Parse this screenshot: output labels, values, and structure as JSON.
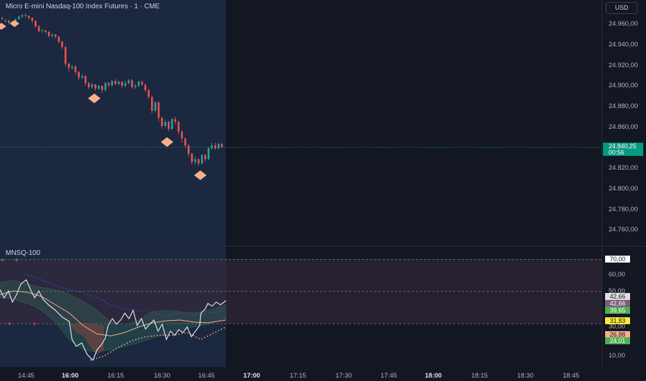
{
  "header": {
    "title": "Micro E-mini Nasdaq-100 Index Futures · 1 · CME",
    "currency": "USD"
  },
  "price_axis": [
    "24.960,00",
    "24.940,00",
    "24.920,00",
    "24.900,00",
    "24.880,00",
    "24.860,00",
    "24.820,00",
    "24.800,00",
    "24.780,00",
    "24.760,00"
  ],
  "last_price": {
    "price": "24.840,25",
    "countdown": "00:56"
  },
  "indicator": {
    "name": "MNSQ-100",
    "axis": [
      "60,00",
      "50,00",
      "30,00",
      "10,00"
    ],
    "tags": [
      {
        "value": "70,00",
        "bg": "#ffffff",
        "fg": "#131722"
      },
      {
        "value": "42,66",
        "bg": "#e0e0e0",
        "fg": "#131722"
      },
      {
        "value": "42,66",
        "bg": "#7e5b7a",
        "fg": "#ffffff"
      },
      {
        "value": "39,65",
        "bg": "#4caf50",
        "fg": "#ffffff"
      },
      {
        "value": "31,83",
        "bg": "#ffeb3b",
        "fg": "#131722"
      },
      {
        "value": "26,88",
        "bg": "#f7b08a",
        "fg": "#131722"
      },
      {
        "value": "24,01",
        "bg": "#4caf50",
        "fg": "#ffffff"
      }
    ]
  },
  "time_axis": [
    "14:45",
    "16:00",
    "16:15",
    "16:30",
    "16:45",
    "17:00",
    "17:15",
    "17:30",
    "17:45",
    "18:00",
    "18:15",
    "18:30",
    "18:45"
  ],
  "colors": {
    "up": "#26a69a",
    "down": "#ef5350",
    "session_bg": "#1c2740",
    "diamond": "#f7b08a"
  }
}
